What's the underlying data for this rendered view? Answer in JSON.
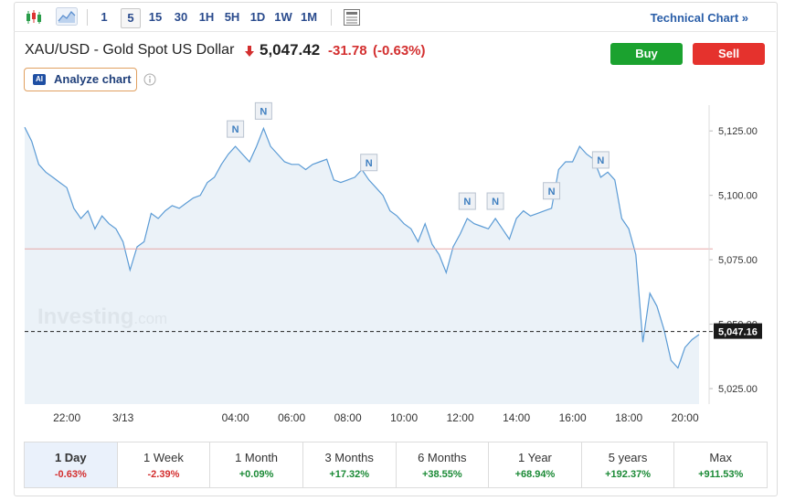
{
  "toolbar": {
    "intervals": [
      "1",
      "5",
      "15",
      "30",
      "1H",
      "5H",
      "1D",
      "1W",
      "1M"
    ],
    "active_interval": "5",
    "technical_chart": "Technical Chart »"
  },
  "header": {
    "title": "XAU/USD - Gold Spot US Dollar",
    "price": "5,047.42",
    "change": "-31.78",
    "change_pct": "(-0.63%)",
    "buy": "Buy",
    "sell": "Sell",
    "ai_badge": "AI",
    "analyze": "Analyze chart"
  },
  "chart_data": {
    "type": "area",
    "color": "#5b9bd5",
    "fill": "#e4edf6",
    "watermark": [
      "Investing",
      ".com"
    ],
    "categories": [
      null,
      null,
      null,
      null,
      null,
      null,
      "22:00",
      null,
      null,
      null,
      null,
      null,
      null,
      null,
      "3/13",
      null,
      null,
      null,
      null,
      null,
      null,
      null,
      null,
      null,
      null,
      null,
      null,
      null,
      null,
      null,
      "04:00",
      null,
      null,
      null,
      null,
      null,
      null,
      null,
      "06:00",
      null,
      null,
      null,
      null,
      null,
      null,
      null,
      "08:00",
      null,
      null,
      null,
      null,
      null,
      null,
      null,
      "10:00",
      null,
      null,
      null,
      null,
      null,
      null,
      null,
      "12:00",
      null,
      null,
      null,
      null,
      null,
      null,
      null,
      "14:00",
      null,
      null,
      null,
      null,
      null,
      null,
      null,
      "16:00",
      null,
      null,
      null,
      null,
      null,
      null,
      null,
      "18:00",
      null,
      null,
      null,
      null,
      null,
      null,
      null,
      "20:00",
      null,
      null
    ],
    "values": [
      5126.4,
      5121,
      5112,
      5109,
      5107,
      5105,
      5103,
      5095,
      5091,
      5094,
      5087,
      5092,
      5089,
      5087,
      5082,
      5071,
      5080,
      5082,
      5093,
      5091,
      5094,
      5096,
      5095,
      5097,
      5099,
      5100,
      5105,
      5107,
      5112,
      5116,
      5119,
      5116,
      5113,
      5119,
      5126,
      5119,
      5116,
      5113,
      5112,
      5112,
      5110,
      5112,
      5113,
      5114,
      5106,
      5105,
      5106,
      5107,
      5110,
      5106,
      5103,
      5100,
      5094,
      5092,
      5089,
      5087,
      5082,
      5089,
      5081,
      5077,
      5070,
      5080,
      5085,
      5091,
      5089,
      5088,
      5087,
      5091,
      5087,
      5083,
      5091,
      5094,
      5092,
      5093,
      5094,
      5095,
      5110,
      5113,
      5113,
      5119,
      5116,
      5114,
      5107,
      5109,
      5106,
      5091,
      5087,
      5077,
      5043,
      5062,
      5057,
      5048,
      5036,
      5033,
      5041,
      5044,
      5046
    ],
    "ylim": [
      5019,
      5135
    ],
    "yticks": [
      {
        "value": 5025,
        "label": "5,025.00"
      },
      {
        "value": 5050,
        "label": "5,050.00"
      },
      {
        "value": 5075,
        "label": "5,075.00"
      },
      {
        "value": 5100,
        "label": "5,100.00"
      },
      {
        "value": 5125,
        "label": "5,125.00"
      }
    ],
    "grid": false,
    "reference_line": {
      "value": 5079.2,
      "color": "#e8a8a8"
    },
    "last_price": {
      "value": 5047.16,
      "label": "5,047.16"
    },
    "annotations": [
      {
        "text": "N",
        "at": 30
      },
      {
        "text": "N",
        "at": 34
      },
      {
        "text": "N",
        "at": 49
      },
      {
        "text": "N",
        "at": 63
      },
      {
        "text": "N",
        "at": 67
      },
      {
        "text": "N",
        "at": 75
      },
      {
        "text": "N",
        "at": 82
      }
    ]
  },
  "periods": [
    {
      "label": "1 Day",
      "change": "-0.63%"
    },
    {
      "label": "1 Week",
      "change": "-2.39%"
    },
    {
      "label": "1 Month",
      "change": "+0.09%"
    },
    {
      "label": "3 Months",
      "change": "+17.32%"
    },
    {
      "label": "6 Months",
      "change": "+38.55%"
    },
    {
      "label": "1 Year",
      "change": "+68.94%"
    },
    {
      "label": "5 years",
      "change": "+192.37%"
    },
    {
      "label": "Max",
      "change": "+911.53%"
    }
  ],
  "active_period": "1 Day"
}
